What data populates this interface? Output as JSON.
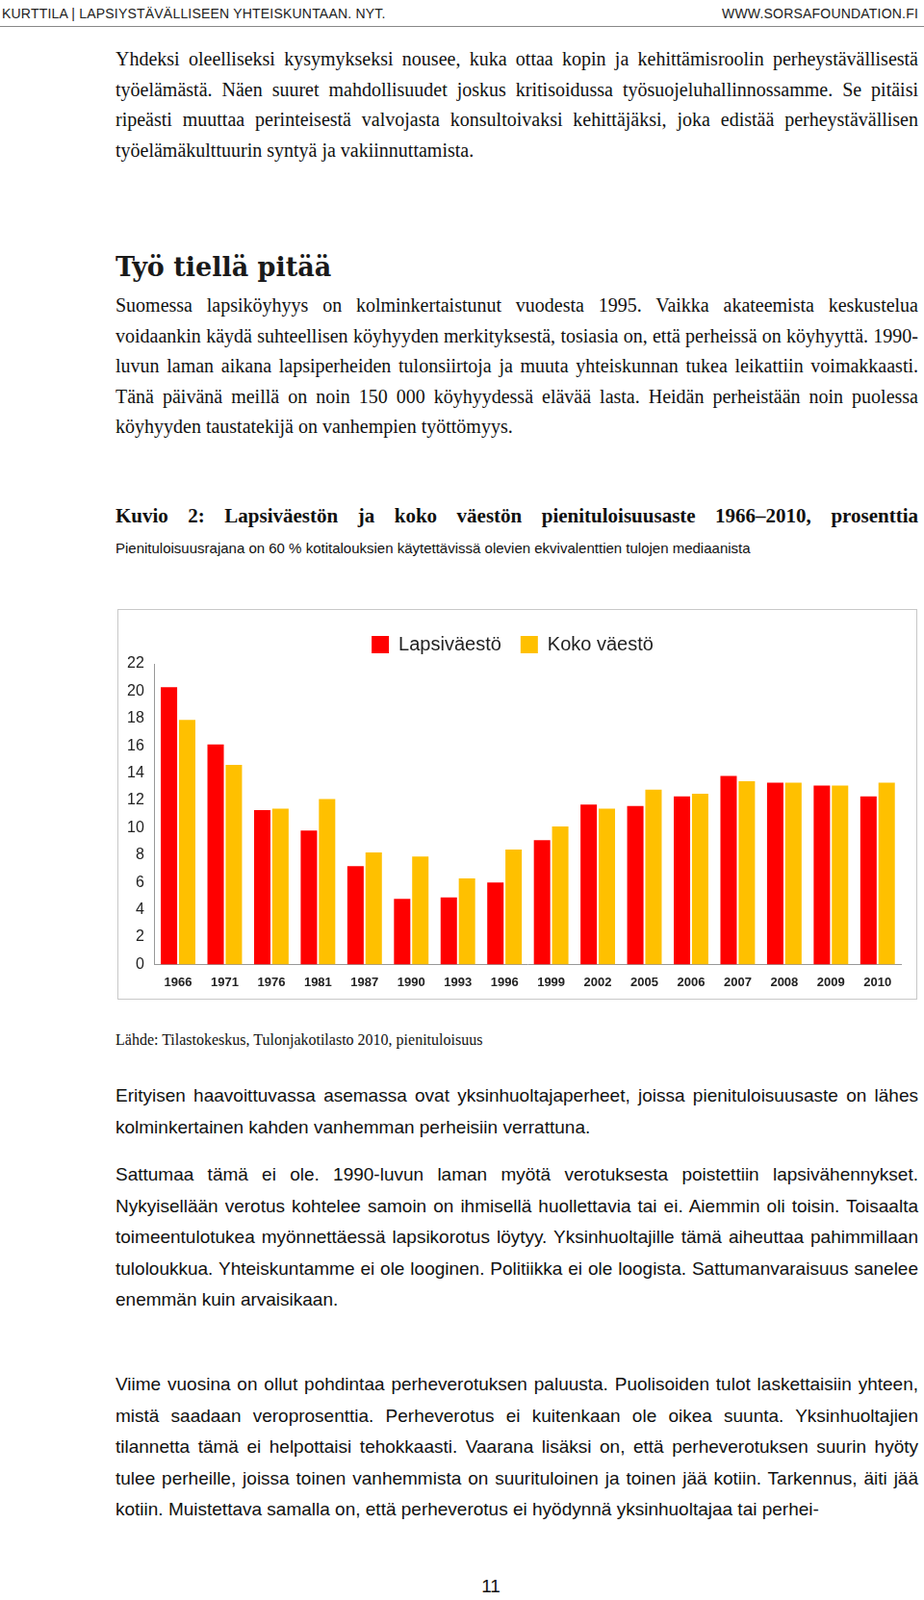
{
  "header": {
    "left": "KURTTILA | LAPSIYSTÄVÄLLISEEN YHTEISKUNTAAN. NYT.",
    "right": "WWW.SORSAFOUNDATION.FI"
  },
  "intro": "Yhdeksi oleelliseksi kysymykseksi nousee, kuka ottaa kopin ja kehittämisroolin perheystävällisestä työelämästä. Näen suuret mahdollisuudet joskus kritisoidussa työsuojeluhallinnossamme. Se pitäisi ripeästi muuttaa perinteisestä valvojasta konsultoivaksi kehittäjäksi, joka edistää perheystävällisen työelämäkulttuurin syntyä ja vakiinnuttamista.",
  "heading": "Työ tiellä pitää",
  "section": "Suomessa lapsiköyhyys on kolminkertaistunut vuodesta 1995. Vaikka akateemista keskustelua voidaankin käydä suhteellisen köyhyyden merkityksestä, tosiasia on, että perheissä on köyhyyttä. 1990-luvun laman aikana lapsiperheiden tulonsiirtoja ja muuta yhteiskunnan tukea leikattiin voimakkaasti. Tänä päivänä meillä on noin 150 000 köyhyydessä elävää lasta. Heidän perheistään noin puolessa köyhyyden taustatekijä on vanhempien työttömyys.",
  "chart_data": {
    "type": "bar",
    "title": "Kuvio 2: Lapsiväestön ja koko väestön pienituloisuusaste 1966–2010, prosenttia",
    "subtitle": "Pienituloisuusrajana on 60 % kotitalouksien käytettävissä olevien ekvivalenttien tulojen mediaanista",
    "categories": [
      "1966",
      "1971",
      "1976",
      "1981",
      "1987",
      "1990",
      "1993",
      "1996",
      "1999",
      "2002",
      "2005",
      "2006",
      "2007",
      "2008",
      "2009",
      "2010"
    ],
    "series": [
      {
        "name": "Lapsiväestö",
        "color": "#ff0000",
        "values": [
          20.3,
          16.1,
          11.3,
          9.8,
          7.2,
          4.8,
          4.9,
          6.0,
          9.1,
          11.7,
          11.6,
          12.3,
          13.8,
          13.3,
          13.1,
          12.3
        ]
      },
      {
        "name": "Koko väestö",
        "color": "#ffc000",
        "values": [
          17.9,
          14.6,
          11.4,
          12.1,
          8.2,
          7.9,
          6.3,
          8.4,
          10.1,
          11.4,
          12.8,
          12.5,
          13.4,
          13.3,
          13.1,
          13.3
        ]
      }
    ],
    "ylim": [
      0,
      22
    ],
    "yticks": [
      0,
      2,
      4,
      6,
      8,
      10,
      12,
      14,
      16,
      18,
      20,
      22
    ],
    "grid": false,
    "legend": "top"
  },
  "source": "Lähde: Tilastokeskus, Tulonjakotilasto 2010, pienituloisuus",
  "paragraphs": [
    "Erityisen haavoittuvassa asemassa ovat yksinhuoltajaperheet, joissa pienituloisuusaste on lähes kolminkertainen kahden vanhemman perheisiin verrattuna.",
    "Sattumaa tämä ei ole. 1990-luvun laman myötä verotuksesta poistettiin lapsivähennykset. Nykyisellään verotus kohtelee samoin on ihmisellä huollettavia tai ei. Aiemmin oli toisin. Toisaalta toimeentulotukea myönnettäessä lapsikorotus löytyy. Yksinhuoltajille tämä aiheuttaa pahimmillaan tuloloukkua. Yhteiskuntamme ei ole looginen. Politiikka ei ole loogista. Sattumanvaraisuus sanelee enemmän kuin arvaisikaan.",
    "Viime vuosina on ollut pohdintaa perheverotuksen paluusta. Puolisoiden tulot laskettaisiin yhteen, mistä saadaan veroprosenttia. Perheverotus ei kuitenkaan ole oikea suunta. Yksinhuoltajien tilannetta tämä ei helpottaisi tehokkaasti. Vaarana lisäksi on, että perheverotuksen suurin hyöty tulee perheille, joissa toinen vanhemmista on suurituloinen ja toinen jää kotiin. Tarkennus, äiti jää kotiin. Muistettava samalla on, että perheverotus ei hyödynnä yksinhuoltajaa tai perhei-"
  ],
  "page_number": "11"
}
